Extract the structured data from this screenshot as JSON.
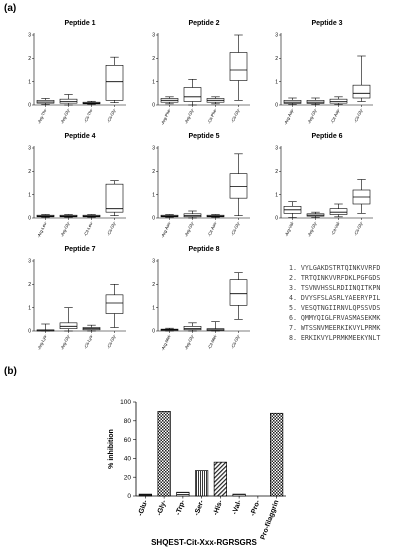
{
  "labels": {
    "panel_a": "(a)",
    "panel_b": "(b)"
  },
  "sequences": [
    "1. VYLGAKDSTRTQINKVVRFD",
    "2. TRTQINKVVRFDKLPGFGDS",
    "3. TSVNVHSSLRDIINQITKPN",
    "4. DVYSFSLASRLYAEERYPIL",
    "5. VESQTNGIIRNVLQPSSVDS",
    "6. QMMYQIGLFRVASMASEKMK",
    "7. WTSSNVMEERKIKVYLPRMK",
    "8. ERKIKVYLPRMKMEEKYNLT"
  ],
  "chart_data": [
    {
      "type": "box",
      "title": "Peptide 1",
      "ylim": [
        0,
        3
      ],
      "yticks": [
        0,
        1,
        2,
        3
      ],
      "categories": [
        "-Arg-Thr-",
        "-Arg-Gly-",
        "-Cit-Thr-",
        "-Cit-Gly-"
      ],
      "boxes": [
        {
          "min": 0.02,
          "q1": 0.08,
          "median": 0.13,
          "q3": 0.2,
          "max": 0.28
        },
        {
          "min": 0.0,
          "q1": 0.08,
          "median": 0.15,
          "q3": 0.25,
          "max": 0.45
        },
        {
          "min": 0.02,
          "q1": 0.05,
          "median": 0.08,
          "q3": 0.12,
          "max": 0.16
        },
        {
          "min": 0.1,
          "q1": 0.2,
          "median": 1.0,
          "q3": 1.7,
          "max": 2.05
        }
      ]
    },
    {
      "type": "box",
      "title": "Peptide 2",
      "ylim": [
        0,
        3
      ],
      "yticks": [
        0,
        1,
        2,
        3
      ],
      "categories": [
        "-Arg-Phe-",
        "-Arg-Gly-",
        "-Cit-Phe-",
        "-Cit-Gly-"
      ],
      "boxes": [
        {
          "min": 0.05,
          "q1": 0.12,
          "median": 0.2,
          "q3": 0.28,
          "max": 0.35
        },
        {
          "min": 0.0,
          "q1": 0.15,
          "median": 0.35,
          "q3": 0.75,
          "max": 1.1
        },
        {
          "min": 0.05,
          "q1": 0.12,
          "median": 0.2,
          "q3": 0.28,
          "max": 0.35
        },
        {
          "min": 0.2,
          "q1": 1.05,
          "median": 1.5,
          "q3": 2.25,
          "max": 3.0
        }
      ]
    },
    {
      "type": "box",
      "title": "Peptide 3",
      "ylim": [
        0,
        3
      ],
      "yticks": [
        0,
        1,
        2,
        3
      ],
      "categories": [
        "-Arg-Asp-",
        "-Arg-Gly-",
        "-Cit-Asp-",
        "-Cit-Gly-"
      ],
      "boxes": [
        {
          "min": 0.02,
          "q1": 0.07,
          "median": 0.12,
          "q3": 0.2,
          "max": 0.3
        },
        {
          "min": 0.02,
          "q1": 0.07,
          "median": 0.12,
          "q3": 0.2,
          "max": 0.3
        },
        {
          "min": 0.02,
          "q1": 0.08,
          "median": 0.15,
          "q3": 0.25,
          "max": 0.35
        },
        {
          "min": 0.15,
          "q1": 0.3,
          "median": 0.5,
          "q3": 0.85,
          "max": 2.1
        }
      ]
    },
    {
      "type": "box",
      "title": "Peptide 4",
      "ylim": [
        0,
        3
      ],
      "yticks": [
        0,
        1,
        2,
        3
      ],
      "categories": [
        "-Arg-Leu-",
        "-Arg-Gly-",
        "-Cit-Leu-",
        "-Cit-Gly-"
      ],
      "boxes": [
        {
          "min": 0.02,
          "q1": 0.05,
          "median": 0.08,
          "q3": 0.12,
          "max": 0.15
        },
        {
          "min": 0.02,
          "q1": 0.05,
          "median": 0.08,
          "q3": 0.12,
          "max": 0.15
        },
        {
          "min": 0.02,
          "q1": 0.05,
          "median": 0.08,
          "q3": 0.12,
          "max": 0.15
        },
        {
          "min": 0.1,
          "q1": 0.25,
          "median": 0.4,
          "q3": 1.45,
          "max": 1.6
        }
      ]
    },
    {
      "type": "box",
      "title": "Peptide 5",
      "ylim": [
        0,
        3
      ],
      "yticks": [
        0,
        1,
        2,
        3
      ],
      "categories": [
        "-Arg-Asn-",
        "-Arg-Gly-",
        "-Cit-Asn-",
        "-Cit-Gly-"
      ],
      "boxes": [
        {
          "min": 0.02,
          "q1": 0.05,
          "median": 0.08,
          "q3": 0.12,
          "max": 0.15
        },
        {
          "min": 0.0,
          "q1": 0.05,
          "median": 0.1,
          "q3": 0.18,
          "max": 0.3
        },
        {
          "min": 0.02,
          "q1": 0.05,
          "median": 0.08,
          "q3": 0.12,
          "max": 0.15
        },
        {
          "min": 0.1,
          "q1": 0.85,
          "median": 1.35,
          "q3": 1.9,
          "max": 2.75
        }
      ]
    },
    {
      "type": "box",
      "title": "Peptide 6",
      "ylim": [
        0,
        3
      ],
      "yticks": [
        0,
        1,
        2,
        3
      ],
      "categories": [
        "-Arg-Val-",
        "-Arg-Gly-",
        "-Cit-Val-",
        "-Cit-Gly-"
      ],
      "boxes": [
        {
          "min": 0.02,
          "q1": 0.2,
          "median": 0.35,
          "q3": 0.5,
          "max": 0.7
        },
        {
          "min": 0.02,
          "q1": 0.08,
          "median": 0.12,
          "q3": 0.18,
          "max": 0.25
        },
        {
          "min": 0.05,
          "q1": 0.15,
          "median": 0.25,
          "q3": 0.4,
          "max": 0.6
        },
        {
          "min": 0.2,
          "q1": 0.6,
          "median": 0.9,
          "q3": 1.2,
          "max": 1.65
        }
      ]
    },
    {
      "type": "box",
      "title": "Peptide 7",
      "ylim": [
        0,
        3
      ],
      "yticks": [
        0,
        1,
        2,
        3
      ],
      "categories": [
        "-Arg-Lys-",
        "-Arg-Gly-",
        "-Cit-Lys-",
        "-Cit-Gly-"
      ],
      "boxes": [
        {
          "min": 0.0,
          "q1": 0.0,
          "median": 0.02,
          "q3": 0.05,
          "max": 0.3
        },
        {
          "min": 0.0,
          "q1": 0.1,
          "median": 0.2,
          "q3": 0.35,
          "max": 1.0
        },
        {
          "min": 0.0,
          "q1": 0.05,
          "median": 0.1,
          "q3": 0.15,
          "max": 0.25
        },
        {
          "min": 0.15,
          "q1": 0.75,
          "median": 1.2,
          "q3": 1.55,
          "max": 2.0
        }
      ]
    },
    {
      "type": "box",
      "title": "Peptide 8",
      "ylim": [
        0,
        3
      ],
      "yticks": [
        0,
        1,
        2,
        3
      ],
      "categories": [
        "-Arg-Met-",
        "-Arg-Gly-",
        "-Cit-Met-",
        "-Cit-Gly-"
      ],
      "boxes": [
        {
          "min": 0.0,
          "q1": 0.02,
          "median": 0.05,
          "q3": 0.08,
          "max": 0.12
        },
        {
          "min": 0.0,
          "q1": 0.05,
          "median": 0.1,
          "q3": 0.2,
          "max": 0.35
        },
        {
          "min": 0.0,
          "q1": 0.02,
          "median": 0.05,
          "q3": 0.1,
          "max": 0.4
        },
        {
          "min": 0.5,
          "q1": 1.1,
          "median": 1.6,
          "q3": 2.2,
          "max": 2.5
        }
      ]
    },
    {
      "type": "bar",
      "title": "",
      "categories": [
        "-Glu-",
        "-Gly-",
        "-Trp-",
        "-Ser-",
        "-His-",
        "-Val-",
        "-Pro-",
        "Pro-filaggrin"
      ],
      "values": [
        2,
        90,
        4,
        27,
        36,
        2,
        0,
        88
      ],
      "patterns": [
        "solid",
        "checker",
        "hstripe",
        "vstripe",
        "diag",
        "hstripe",
        "none",
        "checker"
      ],
      "ylabel": "% inhibition",
      "xlabel": "SHQEST-Cit-Xxx-RGRSGRS",
      "ylim": [
        0,
        100
      ],
      "yticks": [
        0,
        20,
        40,
        60,
        80,
        100
      ]
    }
  ]
}
